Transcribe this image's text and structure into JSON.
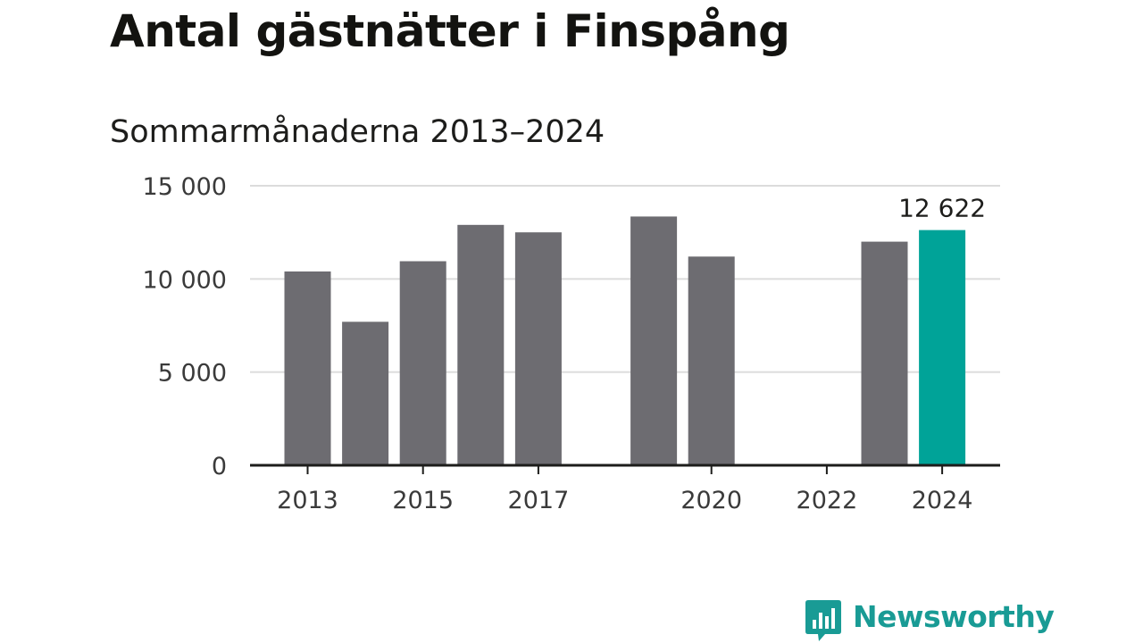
{
  "brand": {
    "name": "Newsworthy",
    "color": "#199b95",
    "icon": "bar-chart-speech-bubble-icon"
  },
  "colors": {
    "bar": "#6d6c71",
    "highlight": "#00a398",
    "grid": "#dcdcdc",
    "axis": "#1d1d1b"
  },
  "chart_data": {
    "type": "bar",
    "title": "Antal gästnätter i Finspång",
    "subtitle": "Sommarmånaderna 2013–2024",
    "categories": [
      "2013",
      "2014",
      "2015",
      "2016",
      "2017",
      "2018",
      "2019",
      "2020",
      "2021",
      "2022",
      "2023",
      "2024"
    ],
    "values": [
      10400,
      7700,
      10950,
      12900,
      12500,
      null,
      13350,
      11200,
      null,
      null,
      12000,
      12622
    ],
    "highlight_category": "2024",
    "data_labels": [
      {
        "category": "2024",
        "text": "12 622"
      }
    ],
    "ylim": [
      0,
      15000
    ],
    "yticks": [
      {
        "value": 0,
        "label": "0"
      },
      {
        "value": 5000,
        "label": "5 000"
      },
      {
        "value": 10000,
        "label": "10 000"
      },
      {
        "value": 15000,
        "label": "15 000"
      }
    ],
    "xticks": [
      {
        "category": "2013",
        "label": "2013"
      },
      {
        "category": "2015",
        "label": "2015"
      },
      {
        "category": "2017",
        "label": "2017"
      },
      {
        "category": "2020",
        "label": "2020"
      },
      {
        "category": "2022",
        "label": "2022"
      },
      {
        "category": "2024",
        "label": "2024"
      }
    ],
    "grid": "horizontal",
    "legend": "none",
    "xlabel": "",
    "ylabel": ""
  }
}
